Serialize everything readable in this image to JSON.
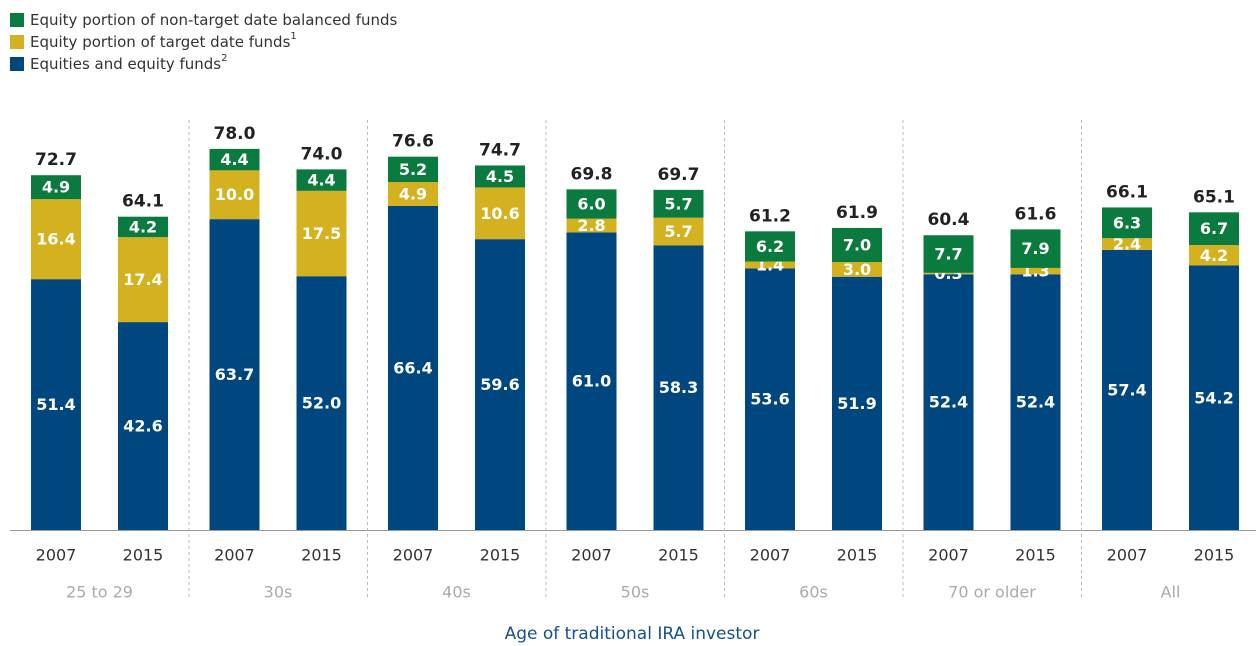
{
  "chart_data": {
    "type": "stacked_bar",
    "xlabel": "Age of traditional IRA investor",
    "categories": [
      "2007",
      "2015",
      "2007",
      "2015",
      "2007",
      "2015",
      "2007",
      "2015",
      "2007",
      "2015",
      "2007",
      "2015",
      "2007",
      "2015"
    ],
    "groups": [
      "25 to 29",
      "30s",
      "40s",
      "50s",
      "60s",
      "70 or older",
      "All"
    ],
    "series": [
      {
        "name": "Equities and equity funds",
        "footnote": "2",
        "color": "#00467f",
        "values": [
          51.4,
          42.6,
          63.7,
          52.0,
          66.4,
          59.6,
          61.0,
          58.3,
          53.6,
          51.9,
          52.4,
          52.4,
          57.4,
          54.2
        ],
        "value_labels": [
          "51.4",
          "42.6",
          "63.7",
          "52.0",
          "66.4",
          "59.6",
          "61.0",
          "58.3",
          "53.6",
          "51.9",
          "52.4",
          "52.4",
          "57.4",
          "54.2"
        ]
      },
      {
        "name": "Equity portion of target date funds",
        "footnote": "1",
        "color": "#d4b11e",
        "values": [
          16.4,
          17.4,
          10.0,
          17.5,
          4.9,
          10.6,
          2.8,
          5.7,
          1.4,
          3.0,
          0.3,
          1.3,
          2.4,
          4.2
        ],
        "value_labels": [
          "16.4",
          "17.4",
          "10.0",
          "17.5",
          "4.9",
          "10.6",
          "2.8",
          "5.7",
          "1.4",
          "3.0",
          "0.3",
          "1.3",
          "2.4",
          "4.2"
        ]
      },
      {
        "name": "Equity portion of non-target date balanced funds",
        "color": "#0b7a3e",
        "values": [
          4.9,
          4.2,
          4.4,
          4.4,
          5.2,
          4.5,
          6.0,
          5.7,
          6.2,
          7.0,
          7.7,
          7.9,
          6.3,
          6.7
        ],
        "value_labels": [
          "4.9",
          "4.2",
          "4.4",
          "4.4",
          "5.2",
          "4.5",
          "6.0",
          "5.7",
          "6.2",
          "7.0",
          "7.7",
          "7.9",
          "6.3",
          "6.7"
        ]
      }
    ],
    "totals": [
      72.7,
      64.1,
      78.0,
      74.0,
      76.6,
      74.7,
      69.8,
      69.7,
      61.2,
      61.9,
      60.4,
      61.6,
      66.1,
      65.1
    ],
    "total_labels": [
      "72.7",
      "64.1",
      "78.0",
      "74.0",
      "76.6",
      "74.7",
      "69.8",
      "69.7",
      "61.2",
      "61.9",
      "60.4",
      "61.6",
      "66.1",
      "65.1"
    ]
  }
}
